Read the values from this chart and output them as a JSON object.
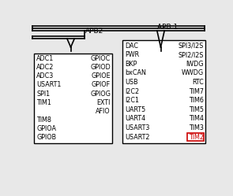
{
  "bg_color": "#f0f0f0",
  "apb2_label": "APB2",
  "apb1_label": "APB 1",
  "apb2_left_items": [
    "ADC1",
    "ADC2",
    "ADC3",
    "USART1",
    "SPI1",
    "TIM1",
    "",
    "TIM8",
    "GPIOA",
    "GPIOB"
  ],
  "apb2_right_items": [
    "GPIOC",
    "GPIOD",
    "GPIOE",
    "GPIOF",
    "GPIOG",
    "EXTI",
    "AFIO",
    "",
    "",
    ""
  ],
  "apb1_left_items": [
    "DAC",
    "PWR",
    "BKP",
    "bxCAN",
    "USB",
    "I2C2",
    "I2C1",
    "UART5",
    "UART4",
    "USART3",
    "USART2"
  ],
  "apb1_right_items": [
    "SPI3/I2S",
    "SPI2/I2S",
    "IWDG",
    "WWDG",
    "RTC",
    "TIM7",
    "TIM6",
    "TIM5",
    "TIM4",
    "TIM3",
    "TIM2"
  ],
  "highlight_item": "TIM2",
  "highlight_color": "#cc0000",
  "font_size": 5.8,
  "label_font_size": 6.5
}
